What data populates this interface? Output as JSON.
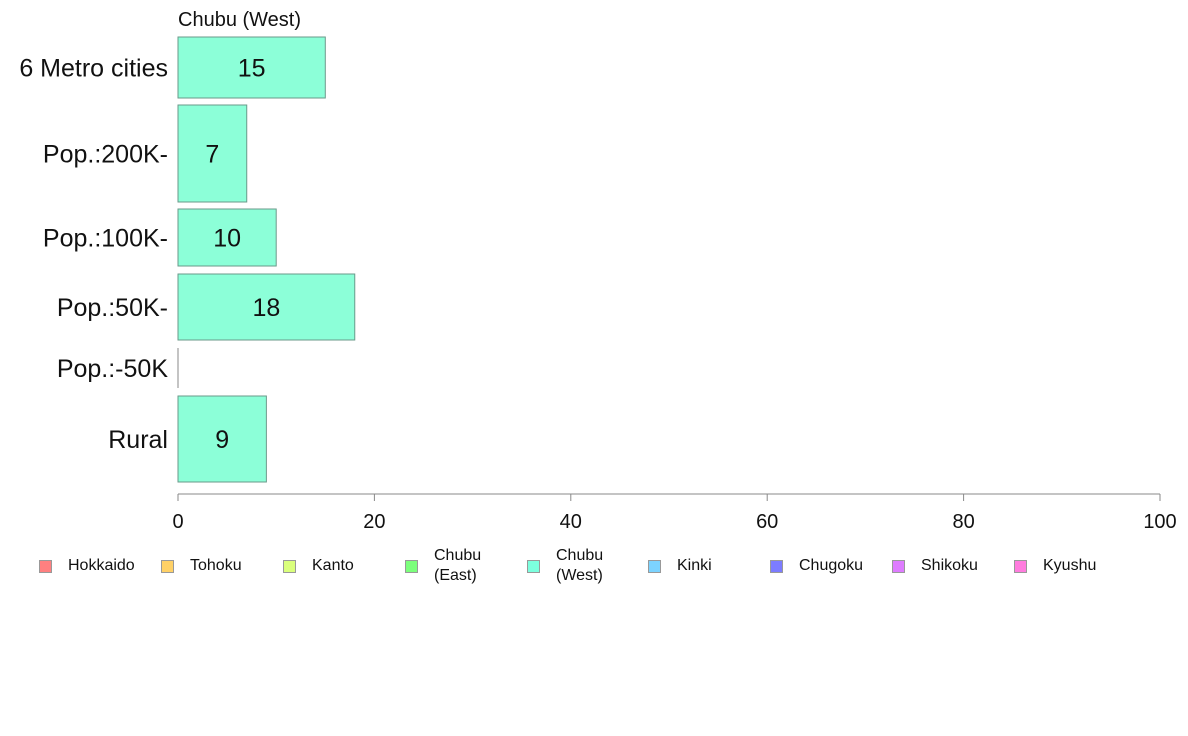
{
  "chart_data": {
    "type": "bar",
    "orientation": "horizontal",
    "title": "Chubu (West)",
    "categories": [
      "6 Metro cities",
      "Pop.:200K-",
      "Pop.:100K-",
      "Pop.:50K-",
      "Pop.:-50K",
      "Rural"
    ],
    "values": [
      15,
      7,
      10,
      18,
      0,
      9
    ],
    "data_labels": [
      "15",
      "7",
      "10",
      "18",
      "",
      "9"
    ],
    "xlim": [
      0,
      100
    ],
    "x_ticks": [
      0,
      20,
      40,
      60,
      80,
      100
    ],
    "x_tick_labels": [
      "0",
      "20",
      "40",
      "60",
      "80",
      "100"
    ],
    "bar_color": "#7fffd4",
    "grid": false,
    "legend_position": "bottom"
  },
  "legend": {
    "items": [
      {
        "label": "Hokkaido",
        "color": "#ff6b6b"
      },
      {
        "label": "Tohoku",
        "color": "#ffc94d"
      },
      {
        "label": "Kanto",
        "color": "#d4ff66"
      },
      {
        "label": "Chubu\n(East)",
        "color": "#66ff66"
      },
      {
        "label": "Chubu\n(West)",
        "color": "#66ffd9"
      },
      {
        "label": "Kinki",
        "color": "#66ccff"
      },
      {
        "label": "Chugoku",
        "color": "#6666ff"
      },
      {
        "label": "Shikoku",
        "color": "#d966ff"
      },
      {
        "label": "Kyushu",
        "color": "#ff66d9"
      }
    ]
  }
}
